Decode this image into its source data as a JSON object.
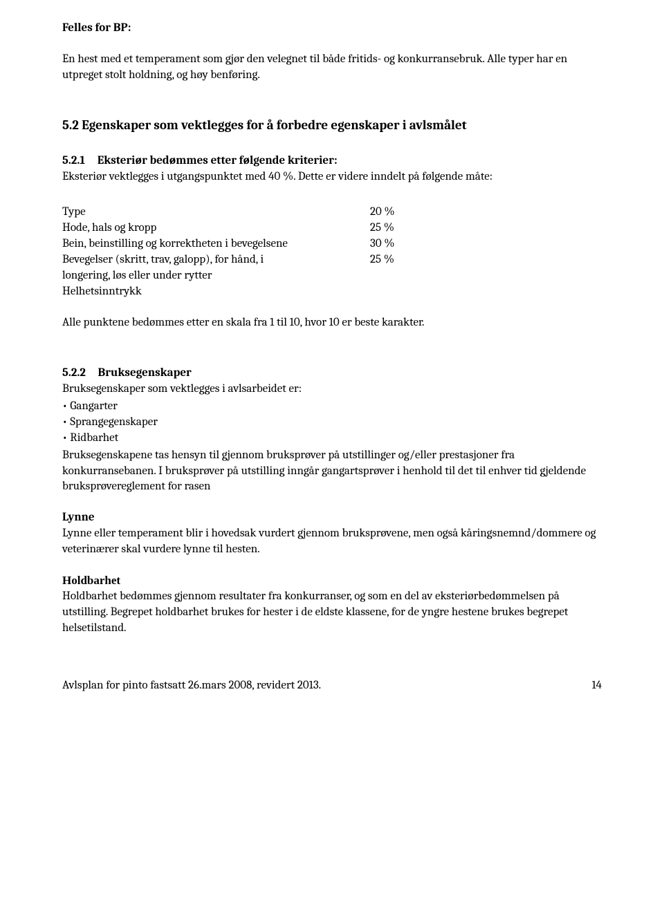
{
  "doc": {
    "felles_heading": "Felles for BP:",
    "intro": "En hest med et temperament som gjør den velegnet til både fritids- og konkurransebruk. Alle typer har en utpreget stolt holdning, og høy benføring.",
    "s52_heading": "5.2 Egenskaper som vektlegges for å forbedre egenskaper i avlsmålet",
    "s521_number": "5.2.1",
    "s521_title": "Eksteriør bedømmes etter følgende kriterier:",
    "s521_text": "Eksteriør vektlegges i utgangspunktet med 40 %. Dette er videre inndelt på følgende måte:",
    "table": {
      "rows": [
        {
          "label": "Type",
          "pct": "20 %"
        },
        {
          "label": "Hode, hals og kropp",
          "pct": "25 %"
        },
        {
          "label": "Bein, beinstilling og korrektheten i bevegelsene",
          "pct": "30 %"
        },
        {
          "label": "Bevegelser (skritt, trav, galopp), for hånd, i",
          "pct": "25 %"
        },
        {
          "label": "longering, løs eller under rytter",
          "pct": ""
        },
        {
          "label": "Helhetsinntrykk",
          "pct": ""
        }
      ]
    },
    "skala_text": "Alle punktene bedømmes etter en skala fra 1 til 10, hvor 10 er beste karakter.",
    "s522_number": "5.2.2",
    "s522_title": "Bruksegenskaper",
    "s522_intro": "Bruksegenskaper som vektlegges i avlsarbeidet er:",
    "bullets": [
      "• Gangarter",
      "• Sprangegenskaper",
      "• Ridbarhet"
    ],
    "bruks_text": "Bruksegenskapene tas hensyn til gjennom bruksprøver på utstillinger og/eller prestasjoner fra konkurransebanen. I bruksprøver på utstilling inngår gangartsprøver i henhold til det til enhver tid gjeldende bruksprøvereglement for rasen",
    "lynne_heading": "Lynne",
    "lynne_text": "Lynne eller temperament blir i hovedsak vurdert gjennom bruksprøvene, men også kåringsnemnd/dommere og veterinærer skal vurdere lynne til hesten.",
    "hold_heading": "Holdbarhet",
    "hold_text": "Holdbarhet bedømmes gjennom resultater fra konkurranser, og som en del av eksteriørbedømmelsen på utstilling. Begrepet holdbarhet brukes for hester i de eldste klassene, for de yngre hestene brukes begrepet helsetilstand.",
    "footer_left": "Avlsplan for pinto fastsatt 26.mars 2008, revidert 2013.",
    "footer_page": "14"
  }
}
